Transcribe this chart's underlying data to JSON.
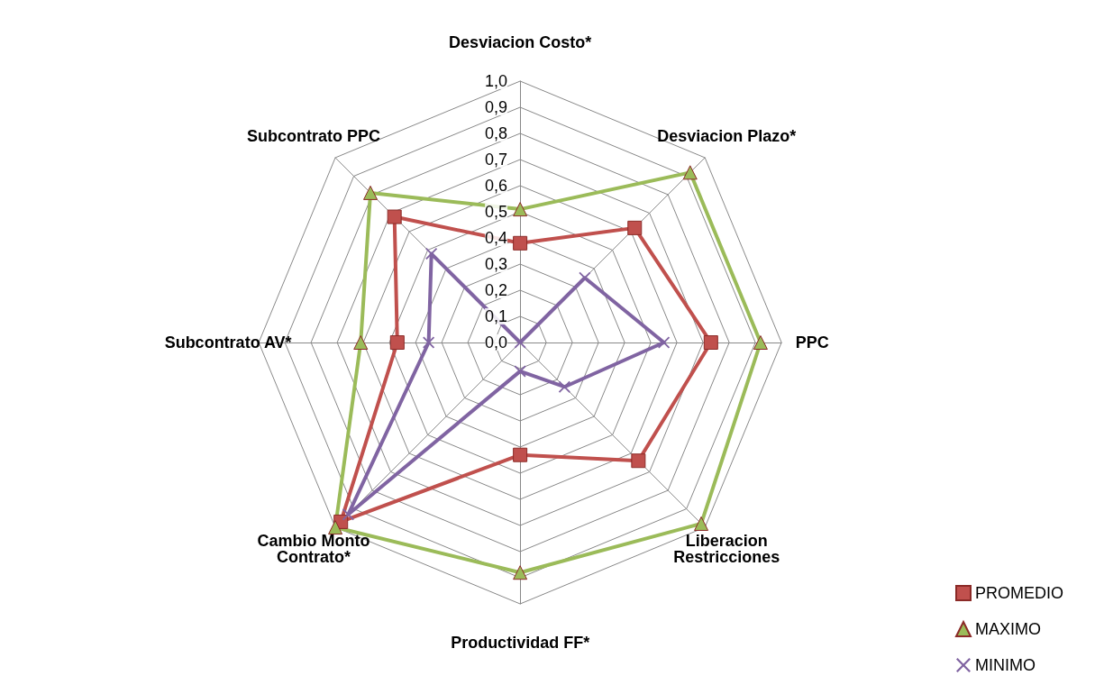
{
  "chart_data": {
    "type": "radar",
    "categories": [
      "Desviacion Costo*",
      "Desviacion Plazo*",
      "PPC",
      "Liberacion\nRestricciones",
      "Productividad FF*",
      "Cambio Monto\nContrato*",
      "Subcontrato AV*",
      "Subcontrato PPC"
    ],
    "series": [
      {
        "name": "PROMEDIO",
        "color": "#c0504d",
        "marker": "square",
        "values": [
          0.38,
          0.62,
          0.73,
          0.64,
          0.43,
          0.97,
          0.47,
          0.68
        ]
      },
      {
        "name": "MAXIMO",
        "color": "#9bbb59",
        "marker": "triangle",
        "values": [
          0.51,
          0.92,
          0.92,
          0.98,
          0.88,
          1.0,
          0.61,
          0.81
        ]
      },
      {
        "name": "MINIMO",
        "color": "#8064a2",
        "marker": "cross",
        "values": [
          0.0,
          0.35,
          0.55,
          0.24,
          0.11,
          0.93,
          0.35,
          0.48
        ]
      }
    ],
    "ylim": [
      0,
      1
    ],
    "yticks": [
      {
        "value": 0,
        "label": "0,0"
      },
      {
        "value": 0.1,
        "label": "0,1"
      },
      {
        "value": 0.2,
        "label": "0,2"
      },
      {
        "value": 0.3,
        "label": "0,3"
      },
      {
        "value": 0.4,
        "label": "0,4"
      },
      {
        "value": 0.5,
        "label": "0,5"
      },
      {
        "value": 0.6,
        "label": "0,6"
      },
      {
        "value": 0.7,
        "label": "0,7"
      },
      {
        "value": 0.8,
        "label": "0,8"
      },
      {
        "value": 0.9,
        "label": "0,9"
      },
      {
        "value": 1,
        "label": "1,0"
      }
    ],
    "grid": true,
    "legend": "bottom right"
  }
}
